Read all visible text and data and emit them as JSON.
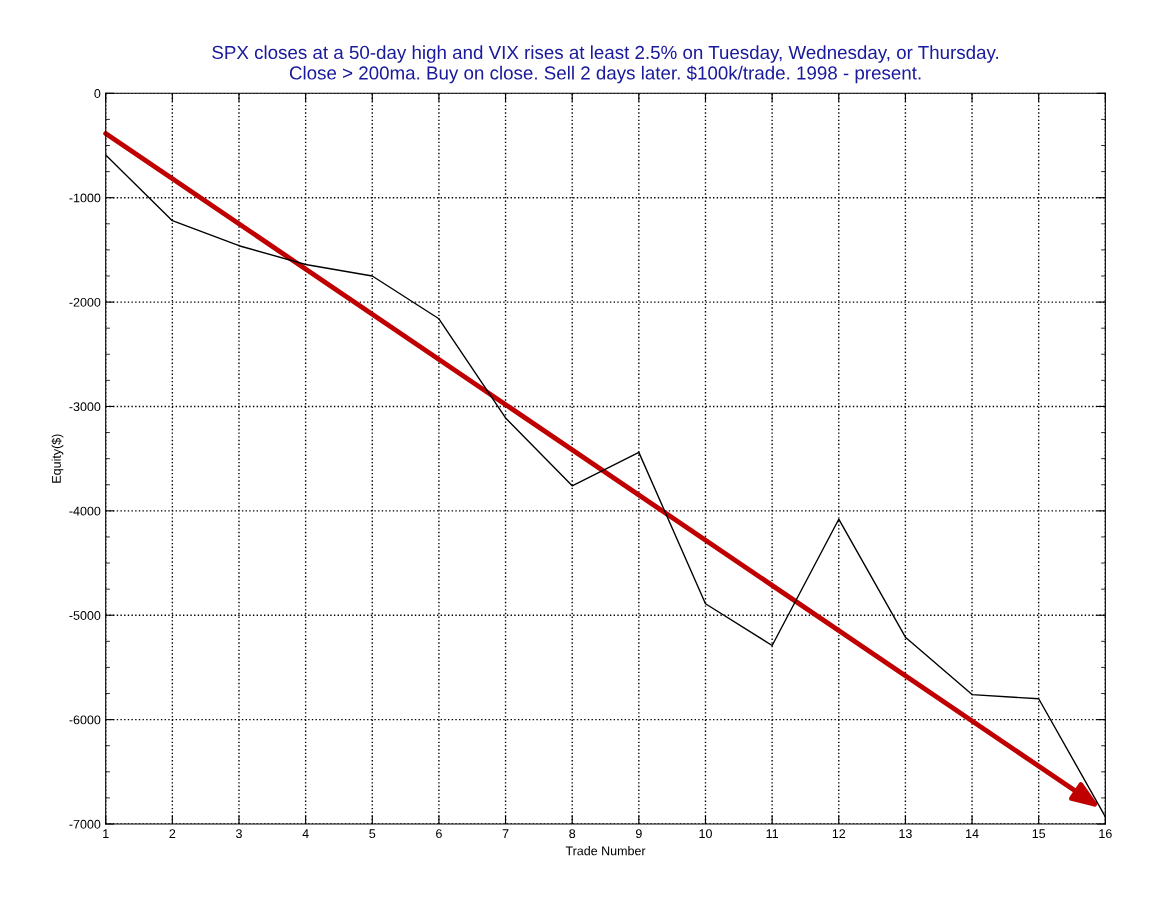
{
  "chart_data": {
    "type": "line",
    "title": "SPX closes at a 50-day high and VIX rises at least 2.5% on Tuesday, Wednesday, or Thursday.\nClose > 200ma. Buy on close. Sell 2 days later. $100k/trade. 1998 - present.",
    "xlabel": "Trade Number",
    "ylabel": "Equity($)",
    "x": [
      1,
      2,
      3,
      4,
      5,
      6,
      7,
      8,
      9,
      10,
      11,
      12,
      13,
      14,
      15,
      16
    ],
    "series": [
      {
        "color": "#000000",
        "values": [
          -590,
          -1220,
          -1460,
          -1640,
          -1750,
          -2160,
          -3110,
          -3760,
          -3440,
          -4890,
          -5290,
          -4080,
          -5210,
          -5760,
          -5800,
          -6930
        ]
      }
    ],
    "xlim": [
      1,
      16
    ],
    "ylim": [
      -7000,
      0
    ],
    "xticks": [
      1,
      2,
      3,
      4,
      5,
      6,
      7,
      8,
      9,
      10,
      11,
      12,
      13,
      14,
      15,
      16
    ],
    "yticks": [
      -7000,
      -6000,
      -5000,
      -4000,
      -3000,
      -2000,
      -1000,
      0
    ],
    "grid": true,
    "legend": false,
    "marker": "none",
    "line_style": "solid"
  }
}
